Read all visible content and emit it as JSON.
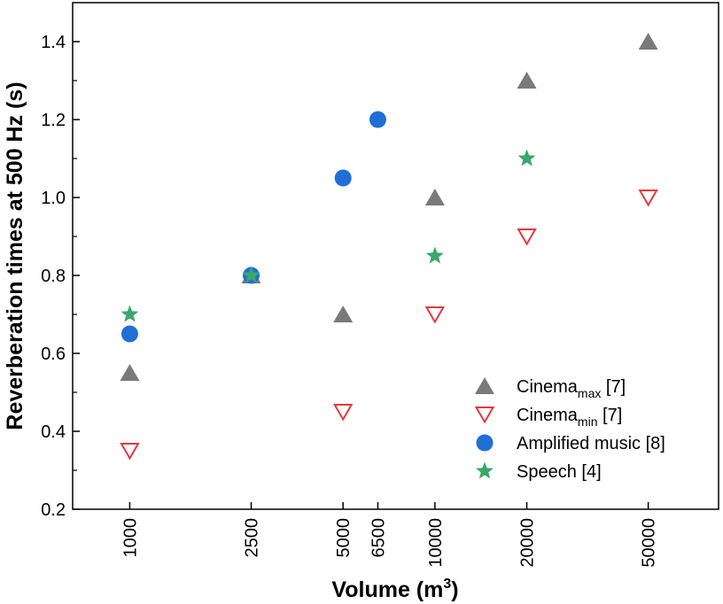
{
  "chart_data": {
    "type": "scatter",
    "x_scale": "log",
    "xlabel": "Volume (m",
    "xlabel_sup": "3",
    "xlabel_close": ")",
    "ylabel": "Reverberation times at 500 Hz (s)",
    "xlim": [
      650,
      85000
    ],
    "ylim": [
      0.2,
      1.5
    ],
    "xticks": [
      1000,
      2500,
      5000,
      6500,
      10000,
      20000,
      50000
    ],
    "xtick_labels": [
      "1000",
      "2500",
      "5000",
      "6500",
      "10000",
      "20000",
      "50000"
    ],
    "yticks": [
      0.2,
      0.4,
      0.6,
      0.8,
      1.0,
      1.2,
      1.4
    ],
    "ytick_labels": [
      "0.2",
      "0.4",
      "0.6",
      "0.8",
      "1.0",
      "1.2",
      "1.4"
    ],
    "legend_position": "bottom-right",
    "series": [
      {
        "key": "cinema-max",
        "name": "Cinema",
        "name_sub": "max",
        "name_suffix": " [7]",
        "marker": "triangle-up",
        "color": "#7a7a7a",
        "points": [
          {
            "x": 1000,
            "y": 0.55
          },
          {
            "x": 2500,
            "y": 0.8
          },
          {
            "x": 5000,
            "y": 0.7
          },
          {
            "x": 10000,
            "y": 1.0
          },
          {
            "x": 20000,
            "y": 1.3
          },
          {
            "x": 50000,
            "y": 1.4
          }
        ]
      },
      {
        "key": "cinema-min",
        "name": "Cinema",
        "name_sub": "min",
        "name_suffix": " [7]",
        "marker": "triangle-down-open",
        "color": "#e8373c",
        "points": [
          {
            "x": 1000,
            "y": 0.35
          },
          {
            "x": 5000,
            "y": 0.45
          },
          {
            "x": 10000,
            "y": 0.7
          },
          {
            "x": 20000,
            "y": 0.9
          },
          {
            "x": 50000,
            "y": 1.0
          }
        ]
      },
      {
        "key": "amplified-music",
        "name": "Amplified music [8]",
        "name_sub": "",
        "name_suffix": "",
        "marker": "circle",
        "color": "#1f6fd6",
        "points": [
          {
            "x": 1000,
            "y": 0.65
          },
          {
            "x": 2500,
            "y": 0.8
          },
          {
            "x": 5000,
            "y": 1.05
          },
          {
            "x": 6500,
            "y": 1.2
          }
        ]
      },
      {
        "key": "speech",
        "name": "Speech [4]",
        "name_sub": "",
        "name_suffix": "",
        "marker": "star",
        "color": "#3aa86b",
        "points": [
          {
            "x": 1000,
            "y": 0.7
          },
          {
            "x": 2500,
            "y": 0.8
          },
          {
            "x": 10000,
            "y": 0.85
          },
          {
            "x": 20000,
            "y": 1.1
          }
        ]
      }
    ]
  }
}
